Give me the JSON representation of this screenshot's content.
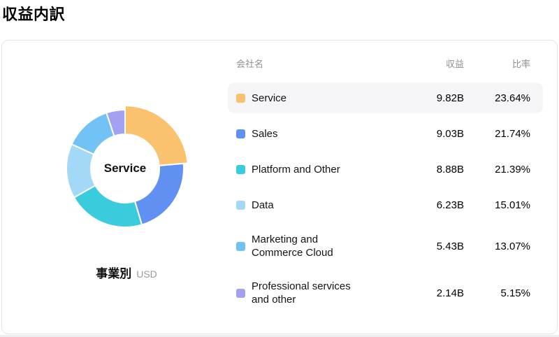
{
  "page": {
    "title": "収益内訳"
  },
  "chart_data": {
    "type": "pie",
    "subtype": "donut",
    "categories": [
      "Service",
      "Sales",
      "Platform and Other",
      "Data",
      "Marketing and Commerce Cloud",
      "Professional services and other"
    ],
    "values": [
      9.82,
      9.03,
      8.88,
      6.23,
      5.43,
      2.14
    ],
    "values_display": [
      "9.82B",
      "9.03B",
      "8.88B",
      "6.23B",
      "5.43B",
      "2.14B"
    ],
    "percentages": [
      23.64,
      21.74,
      21.39,
      15.01,
      13.07,
      5.15
    ],
    "colors": [
      "#FAC26F",
      "#6190F3",
      "#3ACBDC",
      "#A3D8F7",
      "#72C2F5",
      "#A4A1F2"
    ],
    "title": "事業別",
    "unit": "USD",
    "center_label": "Service",
    "hovered_index": 0,
    "legend_position": "right-table",
    "start_angle": "12-oclock",
    "direction": "clockwise"
  },
  "table": {
    "columns": {
      "name": "会社名",
      "revenue": "収益",
      "ratio": "比率"
    },
    "rows": [
      {
        "label": "Service",
        "revenue": "9.82B",
        "ratio": "23.64%",
        "color": "#FAC26F",
        "highlighted": true
      },
      {
        "label": "Sales",
        "revenue": "9.03B",
        "ratio": "21.74%",
        "color": "#6190F3",
        "highlighted": false
      },
      {
        "label": "Platform and Other",
        "revenue": "8.88B",
        "ratio": "21.39%",
        "color": "#3ACBDC",
        "highlighted": false
      },
      {
        "label": "Data",
        "revenue": "6.23B",
        "ratio": "15.01%",
        "color": "#A3D8F7",
        "highlighted": false
      },
      {
        "label": "Marketing and Commerce Cloud",
        "revenue": "5.43B",
        "ratio": "13.07%",
        "color": "#72C2F5",
        "highlighted": false
      },
      {
        "label": "Professional services and other",
        "revenue": "2.14B",
        "ratio": "5.15%",
        "color": "#A4A1F2",
        "highlighted": false
      }
    ]
  },
  "colors": {
    "card_border": "#E3E3ED",
    "row_highlight": "#F5F5F7",
    "header_text": "#8F8F8F",
    "unit_text": "#9A9A9A"
  }
}
